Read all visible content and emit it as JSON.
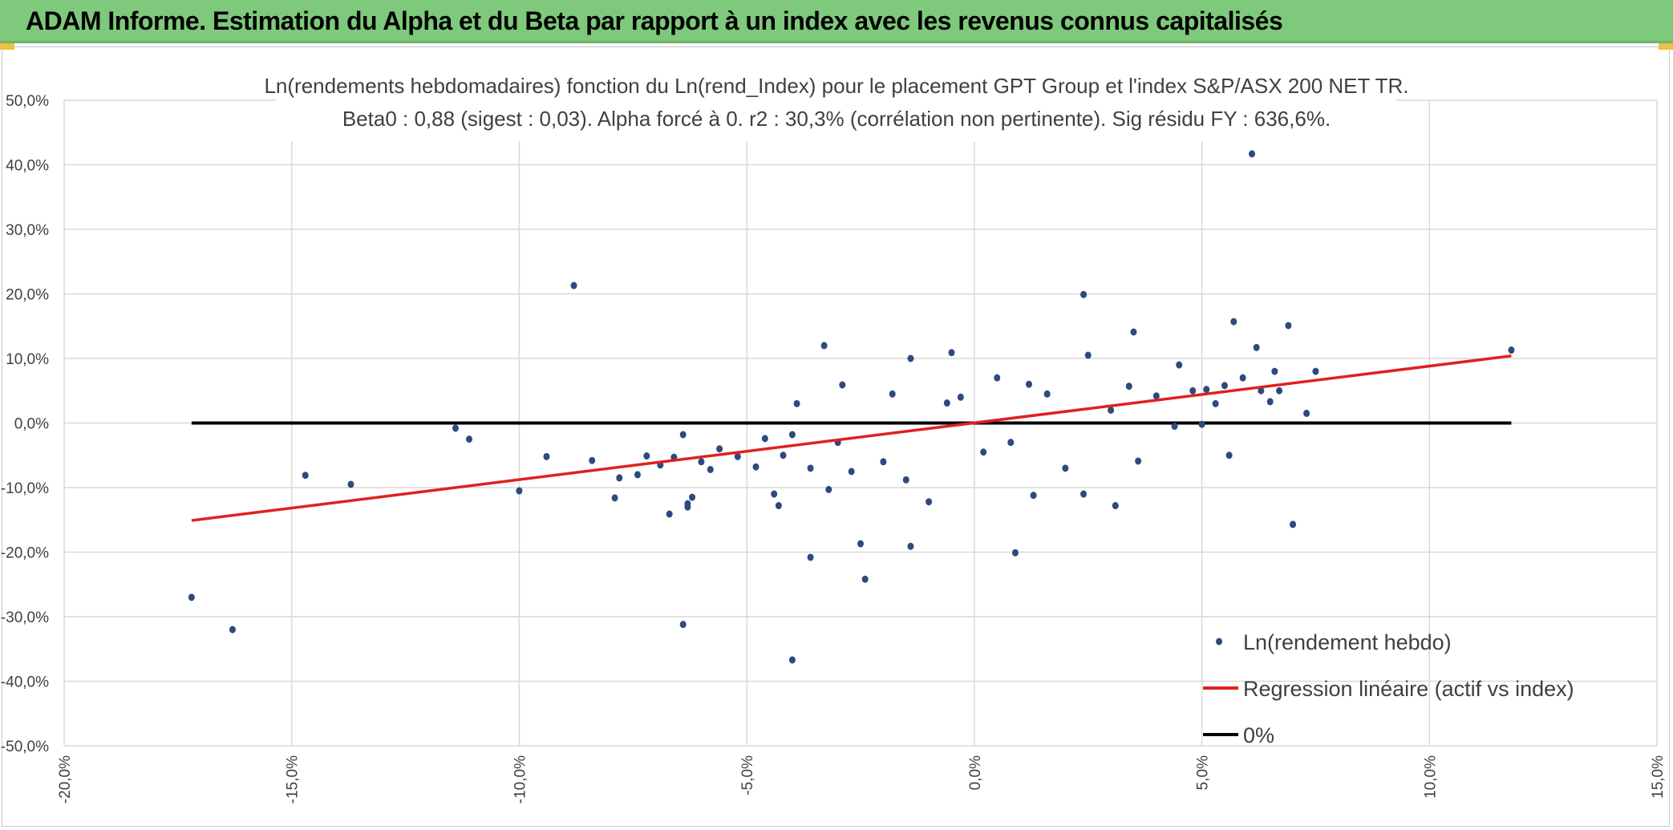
{
  "page": {
    "banner_title": "ADAM Informe. Estimation du Alpha et du Beta par rapport à un index avec les revenus connus capitalisés",
    "banner_color": "#7ec97c",
    "corner_color": "#f2c12e"
  },
  "chart_data": {
    "type": "scatter",
    "title": "Ln(rendements hebdomadaires) fonction du Ln(rend_Index) pour le placement GPT Group et l'index S&P/ASX 200 NET TR.",
    "subtitle": "Beta0 : 0,88 (sigest : 0,03). Alpha forcé à 0. r2 : 30,3% (corrélation non pertinente). Sig résidu FY : 636,6%.",
    "xlabel": "",
    "ylabel": "",
    "xlim": [
      -0.2,
      0.15
    ],
    "ylim": [
      -0.5,
      0.5
    ],
    "x_ticks": [
      -0.2,
      -0.15,
      -0.1,
      -0.05,
      0.0,
      0.05,
      0.1,
      0.15
    ],
    "x_tick_labels": [
      "-20,0%",
      "-15,0%",
      "-10,0%",
      "-5,0%",
      "0,0%",
      "5,0%",
      "10,0%",
      "15,0%"
    ],
    "y_ticks": [
      0.5,
      0.4,
      0.3,
      0.2,
      0.1,
      0.0,
      -0.1,
      -0.2,
      -0.3,
      -0.4,
      -0.5
    ],
    "y_tick_labels": [
      "50,0%",
      "40,0%",
      "30,0%",
      "20,0%",
      "10,0%",
      "0,0%",
      "-10,0%",
      "-20,0%",
      "-30,0%",
      "-40,0%",
      "-50,0%"
    ],
    "grid": true,
    "legend_position": "bottom-right",
    "series": [
      {
        "name": "Ln(rendement hebdo)",
        "kind": "scatter",
        "color": "#2e4a7d",
        "points": [
          [
            -0.172,
            -0.27
          ],
          [
            -0.163,
            -0.32
          ],
          [
            -0.147,
            -0.081
          ],
          [
            -0.137,
            -0.095
          ],
          [
            -0.114,
            -0.008
          ],
          [
            -0.111,
            -0.025
          ],
          [
            -0.1,
            -0.105
          ],
          [
            -0.094,
            -0.052
          ],
          [
            -0.088,
            0.213
          ],
          [
            -0.084,
            -0.058
          ],
          [
            -0.079,
            -0.116
          ],
          [
            -0.078,
            -0.085
          ],
          [
            -0.074,
            -0.08
          ],
          [
            -0.072,
            -0.051
          ],
          [
            -0.069,
            -0.065
          ],
          [
            -0.067,
            -0.141
          ],
          [
            -0.066,
            -0.053
          ],
          [
            -0.064,
            -0.018
          ],
          [
            -0.064,
            -0.312
          ],
          [
            -0.063,
            -0.125
          ],
          [
            -0.063,
            -0.13
          ],
          [
            -0.062,
            -0.115
          ],
          [
            -0.06,
            -0.06
          ],
          [
            -0.058,
            -0.072
          ],
          [
            -0.056,
            -0.04
          ],
          [
            -0.052,
            -0.052
          ],
          [
            -0.048,
            -0.068
          ],
          [
            -0.046,
            -0.024
          ],
          [
            -0.044,
            -0.11
          ],
          [
            -0.043,
            -0.128
          ],
          [
            -0.042,
            -0.05
          ],
          [
            -0.04,
            -0.018
          ],
          [
            -0.04,
            -0.367
          ],
          [
            -0.039,
            0.03
          ],
          [
            -0.036,
            -0.208
          ],
          [
            -0.036,
            -0.07
          ],
          [
            -0.033,
            0.12
          ],
          [
            -0.032,
            -0.103
          ],
          [
            -0.03,
            -0.03
          ],
          [
            -0.029,
            0.059
          ],
          [
            -0.027,
            -0.075
          ],
          [
            -0.025,
            -0.187
          ],
          [
            -0.024,
            -0.242
          ],
          [
            -0.02,
            -0.06
          ],
          [
            -0.018,
            0.045
          ],
          [
            -0.015,
            -0.088
          ],
          [
            -0.014,
            -0.191
          ],
          [
            -0.014,
            0.1
          ],
          [
            -0.01,
            -0.122
          ],
          [
            -0.006,
            0.031
          ],
          [
            -0.005,
            0.109
          ],
          [
            -0.003,
            0.04
          ],
          [
            0.002,
            -0.045
          ],
          [
            0.005,
            0.07
          ],
          [
            0.008,
            -0.03
          ],
          [
            0.009,
            -0.201
          ],
          [
            0.012,
            0.06
          ],
          [
            0.013,
            -0.112
          ],
          [
            0.016,
            0.045
          ],
          [
            0.02,
            -0.07
          ],
          [
            0.024,
            0.199
          ],
          [
            0.024,
            -0.11
          ],
          [
            0.025,
            0.105
          ],
          [
            0.03,
            0.02
          ],
          [
            0.031,
            -0.128
          ],
          [
            0.034,
            0.057
          ],
          [
            0.035,
            0.141
          ],
          [
            0.036,
            -0.059
          ],
          [
            0.04,
            0.042
          ],
          [
            0.044,
            -0.005
          ],
          [
            0.045,
            0.09
          ],
          [
            0.048,
            0.05
          ],
          [
            0.05,
            -0.002
          ],
          [
            0.051,
            0.052
          ],
          [
            0.053,
            0.03
          ],
          [
            0.055,
            0.058
          ],
          [
            0.056,
            -0.05
          ],
          [
            0.057,
            0.157
          ],
          [
            0.059,
            0.07
          ],
          [
            0.061,
            0.417
          ],
          [
            0.062,
            0.117
          ],
          [
            0.063,
            0.05
          ],
          [
            0.065,
            0.033
          ],
          [
            0.066,
            0.08
          ],
          [
            0.067,
            0.05
          ],
          [
            0.069,
            0.151
          ],
          [
            0.07,
            -0.157
          ],
          [
            0.073,
            0.015
          ],
          [
            0.075,
            0.08
          ],
          [
            0.118,
            0.113
          ]
        ]
      },
      {
        "name": "Regression linéaire (actif vs index)",
        "kind": "line",
        "color": "#e02020",
        "points": [
          [
            -0.172,
            -0.151
          ],
          [
            0.118,
            0.104
          ]
        ]
      },
      {
        "name": "0%",
        "kind": "line",
        "color": "#000000",
        "points": [
          [
            -0.172,
            0.0
          ],
          [
            0.118,
            0.0
          ]
        ]
      }
    ]
  }
}
